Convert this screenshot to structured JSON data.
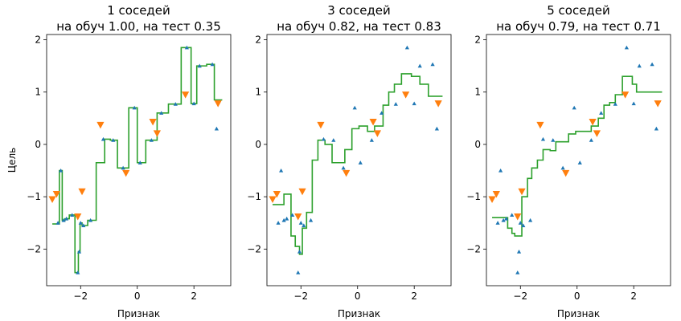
{
  "figure": {
    "ylabel": "Цель",
    "colors": {
      "train": "#1f77b4",
      "test": "#ff7f0e",
      "prediction": "#2ca02c"
    }
  },
  "chart_data": [
    {
      "type": "line",
      "title_line1": "1 соседей",
      "title_line2": "на обуч 1.00, на тест 0.35",
      "xlabel": "Признак",
      "ylabel": "Цель",
      "xlim": [
        -3.2,
        3.3
      ],
      "ylim": [
        -2.7,
        2.1
      ],
      "xticks": [
        -2,
        0,
        2
      ],
      "xtick_labels": [
        "−2",
        "0",
        "2"
      ],
      "yticks": [
        -2,
        -1,
        0,
        1,
        2
      ],
      "ytick_labels": [
        "−2",
        "−1",
        "0",
        "1",
        "2"
      ],
      "series": [
        {
          "marker": "triangle-up",
          "color": "#1f77b4",
          "x": [
            -2.8,
            -2.7,
            -2.6,
            -2.5,
            -2.3,
            -2.1,
            -2.05,
            -2.0,
            -1.9,
            -1.65,
            -1.2,
            -0.85,
            -0.5,
            -0.1,
            0.1,
            0.5,
            0.85,
            1.35,
            1.75,
            2.0,
            2.2,
            2.65,
            2.8
          ],
          "y": [
            -1.5,
            -0.5,
            -1.45,
            -1.42,
            -1.35,
            -2.45,
            -2.05,
            -1.5,
            -1.55,
            -1.45,
            0.1,
            0.08,
            -0.45,
            0.7,
            -0.35,
            0.08,
            0.6,
            0.77,
            1.85,
            0.78,
            1.5,
            1.53,
            0.3
          ]
        },
        {
          "marker": "triangle-down",
          "color": "#ff7f0e",
          "x": [
            -3.0,
            -2.85,
            -1.95,
            -2.1,
            -1.3,
            -0.4,
            0.55,
            0.7,
            1.7,
            2.85
          ],
          "y": [
            -1.05,
            -0.95,
            -0.9,
            -1.38,
            0.37,
            -0.55,
            0.43,
            0.21,
            0.95,
            0.78
          ]
        },
        {
          "color": "#2ca02c",
          "x": [
            -3.0,
            -2.75,
            -2.75,
            -2.65,
            -2.65,
            -2.55,
            -2.55,
            -2.4,
            -2.4,
            -2.2,
            -2.2,
            -2.08,
            -2.08,
            -2.02,
            -2.02,
            -1.95,
            -1.95,
            -1.75,
            -1.75,
            -1.45,
            -1.45,
            -1.15,
            -1.15,
            -0.95,
            -0.95,
            -0.7,
            -0.7,
            -0.3,
            -0.3,
            0.0,
            0.0,
            0.3,
            0.3,
            0.7,
            0.7,
            1.1,
            1.1,
            1.55,
            1.55,
            1.9,
            1.9,
            2.1,
            2.1,
            2.45,
            2.45,
            2.72,
            2.72,
            3.0
          ],
          "y": [
            -1.52,
            -1.52,
            -0.5,
            -0.5,
            -1.45,
            -1.45,
            -1.42,
            -1.42,
            -1.35,
            -1.35,
            -2.45,
            -2.45,
            -2.05,
            -2.05,
            -1.5,
            -1.5,
            -1.55,
            -1.55,
            -1.45,
            -1.45,
            -0.35,
            -0.35,
            0.1,
            0.1,
            0.08,
            0.08,
            -0.45,
            -0.45,
            0.7,
            0.7,
            -0.35,
            -0.35,
            0.08,
            0.08,
            0.6,
            0.6,
            0.77,
            0.77,
            1.85,
            1.85,
            0.78,
            0.78,
            1.5,
            1.5,
            1.53,
            1.53,
            0.85,
            0.85
          ]
        }
      ]
    },
    {
      "type": "line",
      "title_line1": "3 соседей",
      "title_line2": "на обуч 0.82, на тест 0.83",
      "xlabel": "Признак",
      "ylabel": "",
      "xlim": [
        -3.2,
        3.3
      ],
      "ylim": [
        -2.7,
        2.1
      ],
      "xticks": [
        -2,
        0,
        2
      ],
      "xtick_labels": [
        "−2",
        "0",
        "2"
      ],
      "yticks": [
        -2,
        -1,
        0,
        1,
        2
      ],
      "ytick_labels": [
        "−2",
        "−1",
        "0",
        "1",
        "2"
      ],
      "series": [
        {
          "marker": "triangle-up",
          "color": "#1f77b4",
          "x": [
            -2.8,
            -2.7,
            -2.6,
            -2.5,
            -2.3,
            -2.1,
            -2.05,
            -2.0,
            -1.9,
            -1.65,
            -1.2,
            -0.85,
            -0.5,
            -0.1,
            0.1,
            0.5,
            0.85,
            1.35,
            1.75,
            2.0,
            2.2,
            2.65,
            2.8
          ],
          "y": [
            -1.5,
            -0.5,
            -1.45,
            -1.42,
            -1.35,
            -2.45,
            -2.05,
            -1.5,
            -1.55,
            -1.45,
            0.1,
            0.08,
            -0.45,
            0.7,
            -0.35,
            0.08,
            0.6,
            0.77,
            1.85,
            0.78,
            1.5,
            1.53,
            0.3
          ]
        },
        {
          "marker": "triangle-down",
          "color": "#ff7f0e",
          "x": [
            -3.0,
            -2.85,
            -1.95,
            -2.1,
            -1.3,
            -0.4,
            0.55,
            0.7,
            1.7,
            2.85
          ],
          "y": [
            -1.05,
            -0.95,
            -0.9,
            -1.38,
            0.37,
            -0.55,
            0.43,
            0.21,
            0.95,
            0.78
          ]
        },
        {
          "color": "#2ca02c",
          "x": [
            -3.0,
            -2.6,
            -2.6,
            -2.35,
            -2.35,
            -2.2,
            -2.2,
            -2.05,
            -2.05,
            -1.95,
            -1.95,
            -1.8,
            -1.8,
            -1.6,
            -1.6,
            -1.4,
            -1.4,
            -1.15,
            -1.15,
            -0.9,
            -0.9,
            -0.45,
            -0.45,
            -0.2,
            -0.2,
            0.05,
            0.05,
            0.35,
            0.35,
            0.6,
            0.6,
            0.9,
            0.9,
            1.1,
            1.1,
            1.3,
            1.3,
            1.55,
            1.55,
            1.9,
            1.9,
            2.2,
            2.2,
            2.5,
            2.5,
            3.0
          ],
          "y": [
            -1.15,
            -1.15,
            -0.95,
            -0.95,
            -1.75,
            -1.75,
            -1.95,
            -1.95,
            -2.1,
            -2.1,
            -1.6,
            -1.6,
            -1.3,
            -1.3,
            -0.3,
            -0.3,
            0.08,
            0.08,
            0.0,
            0.0,
            -0.35,
            -0.35,
            -0.1,
            -0.1,
            0.3,
            0.3,
            0.35,
            0.35,
            0.25,
            0.25,
            0.35,
            0.35,
            0.75,
            0.75,
            1.0,
            1.0,
            1.15,
            1.15,
            1.35,
            1.35,
            1.3,
            1.3,
            1.15,
            1.15,
            0.92,
            0.92
          ]
        }
      ]
    },
    {
      "type": "line",
      "title_line1": "5 соседей",
      "title_line2": "на обуч 0.79, на тест 0.71",
      "xlabel": "Признак",
      "ylabel": "",
      "xlim": [
        -3.2,
        3.3
      ],
      "ylim": [
        -2.7,
        2.1
      ],
      "xticks": [
        -2,
        0,
        2
      ],
      "xtick_labels": [
        "−2",
        "0",
        "2"
      ],
      "yticks": [
        -2,
        -1,
        0,
        1,
        2
      ],
      "ytick_labels": [
        "−2",
        "−1",
        "0",
        "1",
        "2"
      ],
      "series": [
        {
          "marker": "triangle-up",
          "color": "#1f77b4",
          "x": [
            -2.8,
            -2.7,
            -2.6,
            -2.5,
            -2.3,
            -2.1,
            -2.05,
            -2.0,
            -1.9,
            -1.65,
            -1.2,
            -0.85,
            -0.5,
            -0.1,
            0.1,
            0.5,
            0.85,
            1.35,
            1.75,
            2.0,
            2.2,
            2.65,
            2.8
          ],
          "y": [
            -1.5,
            -0.5,
            -1.45,
            -1.42,
            -1.35,
            -2.45,
            -2.05,
            -1.5,
            -1.55,
            -1.45,
            0.1,
            0.08,
            -0.45,
            0.7,
            -0.35,
            0.08,
            0.6,
            0.77,
            1.85,
            0.78,
            1.5,
            1.53,
            0.3
          ]
        },
        {
          "marker": "triangle-down",
          "color": "#ff7f0e",
          "x": [
            -3.0,
            -2.85,
            -1.95,
            -2.1,
            -1.3,
            -0.4,
            0.55,
            0.7,
            1.7,
            2.85
          ],
          "y": [
            -1.05,
            -0.95,
            -0.9,
            -1.38,
            0.37,
            -0.55,
            0.43,
            0.21,
            0.95,
            0.78
          ]
        },
        {
          "color": "#2ca02c",
          "x": [
            -3.0,
            -2.45,
            -2.45,
            -2.3,
            -2.3,
            -2.2,
            -2.2,
            -1.95,
            -1.95,
            -1.75,
            -1.75,
            -1.6,
            -1.6,
            -1.4,
            -1.4,
            -1.2,
            -1.2,
            -0.95,
            -0.95,
            -0.75,
            -0.75,
            -0.55,
            -0.55,
            -0.3,
            -0.3,
            -0.05,
            -0.05,
            0.2,
            0.2,
            0.5,
            0.5,
            0.75,
            0.75,
            0.95,
            0.95,
            1.15,
            1.15,
            1.35,
            1.35,
            1.6,
            1.6,
            1.95,
            1.95,
            2.1,
            2.1,
            2.5,
            2.5,
            3.0
          ],
          "y": [
            -1.4,
            -1.4,
            -1.6,
            -1.6,
            -1.7,
            -1.7,
            -1.75,
            -1.75,
            -1.0,
            -1.0,
            -0.65,
            -0.65,
            -0.45,
            -0.45,
            -0.3,
            -0.3,
            -0.1,
            -0.1,
            -0.12,
            -0.12,
            0.05,
            0.05,
            0.05,
            0.05,
            0.2,
            0.2,
            0.25,
            0.25,
            0.25,
            0.25,
            0.35,
            0.35,
            0.5,
            0.5,
            0.75,
            0.75,
            0.8,
            0.8,
            0.95,
            0.95,
            1.3,
            1.3,
            1.15,
            1.15,
            1.0,
            1.0,
            1.0,
            1.0
          ]
        }
      ]
    }
  ]
}
